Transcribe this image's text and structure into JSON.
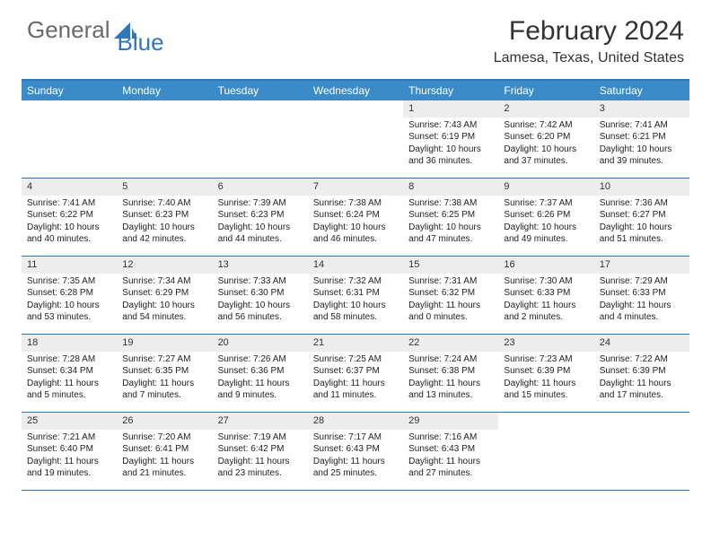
{
  "logo": {
    "general": "General",
    "blue": "Blue"
  },
  "header": {
    "month_title": "February 2024",
    "location": "Lamesa, Texas, United States"
  },
  "weekdays": [
    "Sunday",
    "Monday",
    "Tuesday",
    "Wednesday",
    "Thursday",
    "Friday",
    "Saturday"
  ],
  "colors": {
    "header_bg": "#3b8bc9",
    "border": "#2e77b8",
    "daynum_bg": "#ededed"
  },
  "weeks": [
    [
      null,
      null,
      null,
      null,
      {
        "n": "1",
        "sunrise": "Sunrise: 7:43 AM",
        "sunset": "Sunset: 6:19 PM",
        "daylight": "Daylight: 10 hours and 36 minutes."
      },
      {
        "n": "2",
        "sunrise": "Sunrise: 7:42 AM",
        "sunset": "Sunset: 6:20 PM",
        "daylight": "Daylight: 10 hours and 37 minutes."
      },
      {
        "n": "3",
        "sunrise": "Sunrise: 7:41 AM",
        "sunset": "Sunset: 6:21 PM",
        "daylight": "Daylight: 10 hours and 39 minutes."
      }
    ],
    [
      {
        "n": "4",
        "sunrise": "Sunrise: 7:41 AM",
        "sunset": "Sunset: 6:22 PM",
        "daylight": "Daylight: 10 hours and 40 minutes."
      },
      {
        "n": "5",
        "sunrise": "Sunrise: 7:40 AM",
        "sunset": "Sunset: 6:23 PM",
        "daylight": "Daylight: 10 hours and 42 minutes."
      },
      {
        "n": "6",
        "sunrise": "Sunrise: 7:39 AM",
        "sunset": "Sunset: 6:23 PM",
        "daylight": "Daylight: 10 hours and 44 minutes."
      },
      {
        "n": "7",
        "sunrise": "Sunrise: 7:38 AM",
        "sunset": "Sunset: 6:24 PM",
        "daylight": "Daylight: 10 hours and 46 minutes."
      },
      {
        "n": "8",
        "sunrise": "Sunrise: 7:38 AM",
        "sunset": "Sunset: 6:25 PM",
        "daylight": "Daylight: 10 hours and 47 minutes."
      },
      {
        "n": "9",
        "sunrise": "Sunrise: 7:37 AM",
        "sunset": "Sunset: 6:26 PM",
        "daylight": "Daylight: 10 hours and 49 minutes."
      },
      {
        "n": "10",
        "sunrise": "Sunrise: 7:36 AM",
        "sunset": "Sunset: 6:27 PM",
        "daylight": "Daylight: 10 hours and 51 minutes."
      }
    ],
    [
      {
        "n": "11",
        "sunrise": "Sunrise: 7:35 AM",
        "sunset": "Sunset: 6:28 PM",
        "daylight": "Daylight: 10 hours and 53 minutes."
      },
      {
        "n": "12",
        "sunrise": "Sunrise: 7:34 AM",
        "sunset": "Sunset: 6:29 PM",
        "daylight": "Daylight: 10 hours and 54 minutes."
      },
      {
        "n": "13",
        "sunrise": "Sunrise: 7:33 AM",
        "sunset": "Sunset: 6:30 PM",
        "daylight": "Daylight: 10 hours and 56 minutes."
      },
      {
        "n": "14",
        "sunrise": "Sunrise: 7:32 AM",
        "sunset": "Sunset: 6:31 PM",
        "daylight": "Daylight: 10 hours and 58 minutes."
      },
      {
        "n": "15",
        "sunrise": "Sunrise: 7:31 AM",
        "sunset": "Sunset: 6:32 PM",
        "daylight": "Daylight: 11 hours and 0 minutes."
      },
      {
        "n": "16",
        "sunrise": "Sunrise: 7:30 AM",
        "sunset": "Sunset: 6:33 PM",
        "daylight": "Daylight: 11 hours and 2 minutes."
      },
      {
        "n": "17",
        "sunrise": "Sunrise: 7:29 AM",
        "sunset": "Sunset: 6:33 PM",
        "daylight": "Daylight: 11 hours and 4 minutes."
      }
    ],
    [
      {
        "n": "18",
        "sunrise": "Sunrise: 7:28 AM",
        "sunset": "Sunset: 6:34 PM",
        "daylight": "Daylight: 11 hours and 5 minutes."
      },
      {
        "n": "19",
        "sunrise": "Sunrise: 7:27 AM",
        "sunset": "Sunset: 6:35 PM",
        "daylight": "Daylight: 11 hours and 7 minutes."
      },
      {
        "n": "20",
        "sunrise": "Sunrise: 7:26 AM",
        "sunset": "Sunset: 6:36 PM",
        "daylight": "Daylight: 11 hours and 9 minutes."
      },
      {
        "n": "21",
        "sunrise": "Sunrise: 7:25 AM",
        "sunset": "Sunset: 6:37 PM",
        "daylight": "Daylight: 11 hours and 11 minutes."
      },
      {
        "n": "22",
        "sunrise": "Sunrise: 7:24 AM",
        "sunset": "Sunset: 6:38 PM",
        "daylight": "Daylight: 11 hours and 13 minutes."
      },
      {
        "n": "23",
        "sunrise": "Sunrise: 7:23 AM",
        "sunset": "Sunset: 6:39 PM",
        "daylight": "Daylight: 11 hours and 15 minutes."
      },
      {
        "n": "24",
        "sunrise": "Sunrise: 7:22 AM",
        "sunset": "Sunset: 6:39 PM",
        "daylight": "Daylight: 11 hours and 17 minutes."
      }
    ],
    [
      {
        "n": "25",
        "sunrise": "Sunrise: 7:21 AM",
        "sunset": "Sunset: 6:40 PM",
        "daylight": "Daylight: 11 hours and 19 minutes."
      },
      {
        "n": "26",
        "sunrise": "Sunrise: 7:20 AM",
        "sunset": "Sunset: 6:41 PM",
        "daylight": "Daylight: 11 hours and 21 minutes."
      },
      {
        "n": "27",
        "sunrise": "Sunrise: 7:19 AM",
        "sunset": "Sunset: 6:42 PM",
        "daylight": "Daylight: 11 hours and 23 minutes."
      },
      {
        "n": "28",
        "sunrise": "Sunrise: 7:17 AM",
        "sunset": "Sunset: 6:43 PM",
        "daylight": "Daylight: 11 hours and 25 minutes."
      },
      {
        "n": "29",
        "sunrise": "Sunrise: 7:16 AM",
        "sunset": "Sunset: 6:43 PM",
        "daylight": "Daylight: 11 hours and 27 minutes."
      },
      null,
      null
    ]
  ]
}
